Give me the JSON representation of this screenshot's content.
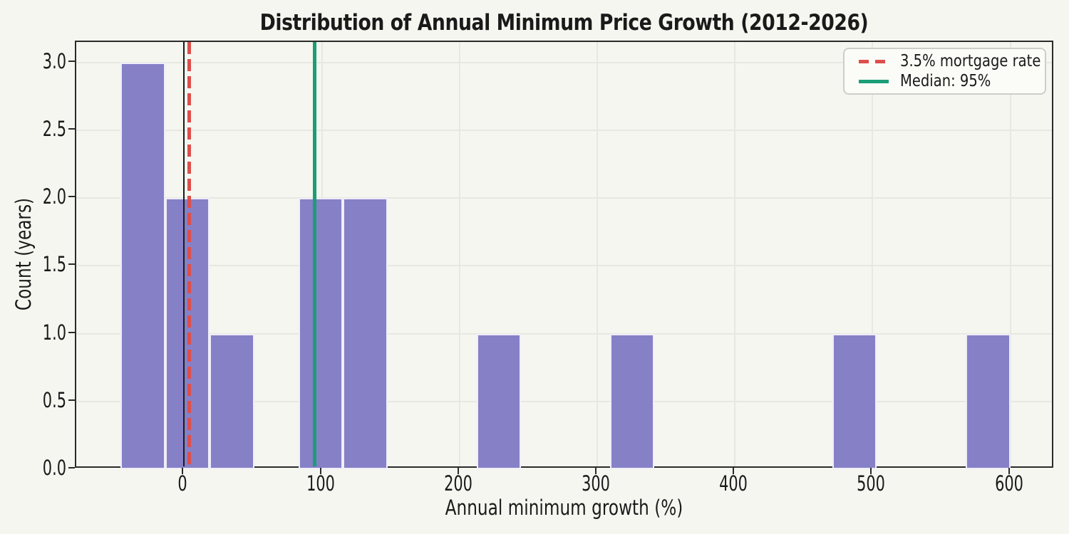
{
  "chart_data": {
    "type": "bar",
    "title": "Distribution of Annual Minimum Price Growth (2012-2026)",
    "xlabel": "Annual minimum growth (%)",
    "ylabel": "Count (years)",
    "bins": {
      "start": -46,
      "width": 32.3,
      "counts": [
        3,
        2,
        1,
        0,
        2,
        2,
        0,
        0,
        1,
        0,
        0,
        1,
        0,
        0,
        0,
        0,
        1,
        0,
        0,
        1
      ]
    },
    "xlim": [
      -78.3,
      632.3
    ],
    "ylim": [
      0,
      3.15
    ],
    "xticks": [
      0,
      100,
      200,
      300,
      400,
      500,
      600
    ],
    "yticks": [
      0,
      0.5,
      1,
      1.5,
      2,
      2.5,
      3
    ],
    "ytick_decimals": 1,
    "grid": true,
    "legend_position": "upper right",
    "bar_color": "#8680c7",
    "bar_edge_color": "#efeef8",
    "background_color": "#f6f6f1",
    "grid_color": "#e8e8e3",
    "vlines": [
      {
        "value": 0,
        "color": "#1a1a1a",
        "style": "solid",
        "width": 2,
        "label": ""
      },
      {
        "value": 3.5,
        "color": "#dd4f4b",
        "style": "dashed",
        "width": 5,
        "label": "3.5% mortgage rate"
      },
      {
        "value": 95,
        "color": "#1b9e77",
        "style": "solid",
        "width": 5,
        "label": "Median: 95%"
      }
    ],
    "legend": {
      "items": [
        {
          "label": "3.5% mortgage rate",
          "color": "#dd4f4b",
          "style": "dashed"
        },
        {
          "label": "Median: 95%",
          "color": "#1b9e77",
          "style": "solid"
        }
      ]
    }
  }
}
